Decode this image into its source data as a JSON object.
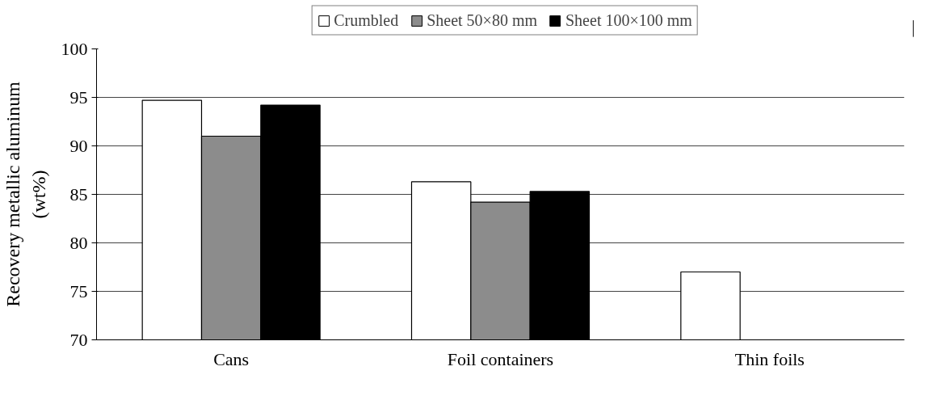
{
  "chart_data": {
    "type": "bar",
    "ylabel": "Recovery metallic aluminum\n(wt%)",
    "categories": [
      "Cans",
      "Foil containers",
      "Thin foils"
    ],
    "series": [
      {
        "name": "Crumbled",
        "color": "#ffffff",
        "values": [
          94.7,
          86.3,
          77.0
        ]
      },
      {
        "name": "Sheet 50×80 mm",
        "color": "#8c8c8c",
        "values": [
          91.0,
          84.2,
          null
        ]
      },
      {
        "name": "Sheet 100×100 mm",
        "color": "#000000",
        "values": [
          94.2,
          85.3,
          null
        ]
      }
    ],
    "ylim": [
      70,
      100
    ],
    "yticks": [
      70,
      75,
      80,
      85,
      90,
      95,
      100
    ],
    "grid": "y",
    "legend": "top"
  }
}
